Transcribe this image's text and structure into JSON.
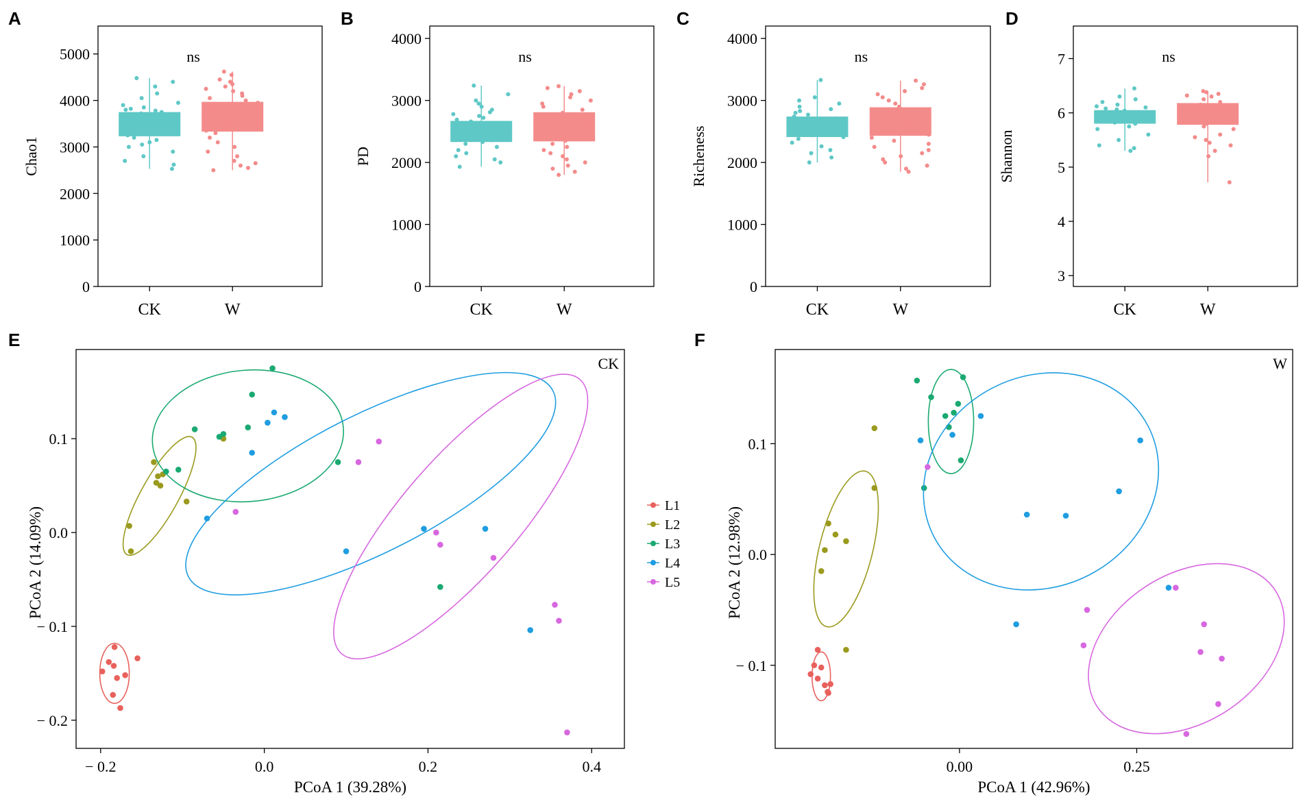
{
  "colors": {
    "CK": "#5ec8c6",
    "W": "#f48b8b",
    "L1": "#e8615c",
    "L2": "#9a9a1e",
    "L3": "#1aa971",
    "L4": "#1f9de0",
    "L5": "#d767e0"
  },
  "chart_data": [
    {
      "panel": "A",
      "type": "box",
      "ylabel": "Chao1",
      "ylim": [
        0,
        5600
      ],
      "yticks": [
        0,
        1000,
        2000,
        3000,
        4000,
        5000
      ],
      "categories": [
        "CK",
        "W"
      ],
      "annotation": "ns",
      "boxes": [
        {
          "name": "CK",
          "min": 2530,
          "q1": 3230,
          "median": 3400,
          "q3": 3750,
          "max": 4480,
          "points": [
            2530,
            2620,
            2700,
            2800,
            2900,
            3000,
            3050,
            3100,
            3150,
            3200,
            3250,
            3300,
            3320,
            3350,
            3380,
            3400,
            3420,
            3450,
            3480,
            3500,
            3530,
            3560,
            3600,
            3620,
            3650,
            3680,
            3700,
            3720,
            3750,
            3780,
            3800,
            3820,
            3850,
            3900,
            3950,
            4050,
            4150,
            4300,
            4400,
            4480
          ]
        },
        {
          "name": "W",
          "min": 2500,
          "q1": 3330,
          "median": 3600,
          "q3": 3970,
          "max": 4620,
          "points": [
            2500,
            2550,
            2600,
            2650,
            2700,
            2800,
            2900,
            3000,
            3100,
            3200,
            3300,
            3350,
            3400,
            3450,
            3500,
            3550,
            3600,
            3650,
            3700,
            3750,
            3800,
            3850,
            3900,
            3950,
            4000,
            4050,
            4100,
            4150,
            4200,
            4250,
            4300,
            4350,
            4400,
            4450,
            4550,
            4620
          ]
        }
      ]
    },
    {
      "panel": "B",
      "type": "box",
      "ylabel": "PD",
      "ylim": [
        0,
        4200
      ],
      "yticks": [
        0,
        1000,
        2000,
        3000,
        4000
      ],
      "categories": [
        "CK",
        "W"
      ],
      "annotation": "ns",
      "boxes": [
        {
          "name": "CK",
          "min": 1930,
          "q1": 2330,
          "median": 2450,
          "q3": 2670,
          "max": 3240,
          "points": [
            1930,
            2000,
            2050,
            2100,
            2150,
            2200,
            2250,
            2300,
            2330,
            2360,
            2390,
            2420,
            2450,
            2480,
            2510,
            2540,
            2570,
            2600,
            2630,
            2660,
            2690,
            2720,
            2750,
            2780,
            2810,
            2850,
            2900,
            2950,
            3000,
            3100,
            3240
          ]
        },
        {
          "name": "W",
          "min": 1800,
          "q1": 2340,
          "median": 2500,
          "q3": 2810,
          "max": 3230,
          "points": [
            1800,
            1850,
            1900,
            1950,
            2000,
            2050,
            2100,
            2150,
            2200,
            2250,
            2300,
            2350,
            2400,
            2450,
            2500,
            2550,
            2600,
            2650,
            2700,
            2750,
            2800,
            2850,
            2900,
            2950,
            3000,
            3050,
            3100,
            3150,
            3200,
            3230
          ]
        }
      ]
    },
    {
      "panel": "C",
      "type": "box",
      "ylabel": "Richeness",
      "ylim": [
        0,
        4200
      ],
      "yticks": [
        0,
        1000,
        2000,
        3000,
        4000
      ],
      "categories": [
        "CK",
        "W"
      ],
      "annotation": "ns",
      "boxes": [
        {
          "name": "CK",
          "min": 2000,
          "q1": 2410,
          "median": 2560,
          "q3": 2740,
          "max": 3330,
          "points": [
            2000,
            2080,
            2150,
            2200,
            2260,
            2320,
            2380,
            2410,
            2440,
            2470,
            2500,
            2530,
            2560,
            2590,
            2620,
            2650,
            2680,
            2710,
            2740,
            2770,
            2800,
            2830,
            2860,
            2900,
            2950,
            3000,
            3050,
            3330
          ]
        },
        {
          "name": "W",
          "min": 1850,
          "q1": 2430,
          "median": 2600,
          "q3": 2890,
          "max": 3320,
          "points": [
            1850,
            1900,
            1950,
            2000,
            2050,
            2100,
            2150,
            2200,
            2250,
            2300,
            2350,
            2400,
            2450,
            2500,
            2550,
            2600,
            2650,
            2700,
            2750,
            2800,
            2850,
            2900,
            2950,
            3000,
            3050,
            3100,
            3150,
            3200,
            3260,
            3320
          ]
        }
      ]
    },
    {
      "panel": "D",
      "type": "box",
      "ylabel": "Shannon",
      "ylim": [
        2.8,
        7.6
      ],
      "yticks": [
        3,
        4,
        5,
        6,
        7
      ],
      "categories": [
        "CK",
        "W"
      ],
      "annotation": "ns",
      "boxes": [
        {
          "name": "CK",
          "min": 5.3,
          "q1": 5.8,
          "median": 5.9,
          "q3": 6.05,
          "max": 6.45,
          "points": [
            5.3,
            5.35,
            5.4,
            5.5,
            5.6,
            5.7,
            5.75,
            5.8,
            5.82,
            5.85,
            5.87,
            5.9,
            5.92,
            5.94,
            5.96,
            5.98,
            6.0,
            6.02,
            6.04,
            6.06,
            6.08,
            6.1,
            6.12,
            6.15,
            6.2,
            6.25,
            6.3,
            6.45
          ]
        },
        {
          "name": "W",
          "min": 4.72,
          "q1": 5.78,
          "median": 6.0,
          "q3": 6.18,
          "max": 6.4,
          "points": [
            4.72,
            5.2,
            5.3,
            5.4,
            5.45,
            5.5,
            5.55,
            5.6,
            5.7,
            5.75,
            5.8,
            5.85,
            5.9,
            5.95,
            6.0,
            6.05,
            6.1,
            6.15,
            6.2,
            6.25,
            6.3,
            6.32,
            6.35,
            6.38,
            6.4
          ]
        }
      ]
    },
    {
      "panel": "E",
      "type": "scatter",
      "tag": "CK",
      "xlabel": "PCoA 1 (39.28%)",
      "ylabel": "PCoA 2 (14.09%)",
      "xlim": [
        -0.23,
        0.44
      ],
      "ylim": [
        -0.23,
        0.195
      ],
      "xticks": [
        -0.2,
        0.0,
        0.2,
        0.4
      ],
      "xtick_labels": [
        "− 0.2",
        "0.0",
        "0.2",
        "0.4"
      ],
      "yticks": [
        0.1,
        0.0,
        -0.1,
        -0.2
      ],
      "ytick_labels": [
        "0.1",
        "0.0",
        "− 0.1",
        "− 0.2"
      ],
      "series": [
        {
          "name": "L1",
          "points": [
            [
              -0.198,
              -0.148
            ],
            [
              -0.19,
              -0.138
            ],
            [
              -0.185,
              -0.173
            ],
            [
              -0.18,
              -0.155
            ],
            [
              -0.176,
              -0.187
            ],
            [
              -0.17,
              -0.152
            ],
            [
              -0.155,
              -0.134
            ],
            [
              -0.184,
              -0.142
            ],
            [
              -0.183,
              -0.122
            ]
          ],
          "ellipse": {
            "cx": -0.183,
            "cy": -0.15,
            "rx": 0.018,
            "ry": 0.032,
            "angle": 0
          }
        },
        {
          "name": "L2",
          "points": [
            [
              -0.165,
              0.007
            ],
            [
              -0.163,
              -0.02
            ],
            [
              -0.135,
              0.075
            ],
            [
              -0.13,
              0.06
            ],
            [
              -0.127,
              0.05
            ],
            [
              -0.132,
              0.053
            ],
            [
              -0.124,
              0.062
            ],
            [
              -0.095,
              0.033
            ],
            [
              -0.05,
              0.1
            ]
          ],
          "ellipse": {
            "cx": -0.128,
            "cy": 0.039,
            "rx": 0.082,
            "ry": 0.02,
            "angle": -61
          }
        },
        {
          "name": "L3",
          "points": [
            [
              0.01,
              0.175
            ],
            [
              -0.015,
              0.147
            ],
            [
              -0.02,
              0.112
            ],
            [
              -0.085,
              0.11
            ],
            [
              -0.05,
              0.105
            ],
            [
              -0.055,
              0.102
            ],
            [
              -0.12,
              0.065
            ],
            [
              -0.105,
              0.067
            ],
            [
              0.09,
              0.075
            ],
            [
              0.215,
              -0.058
            ]
          ],
          "ellipse": {
            "cx": -0.02,
            "cy": 0.103,
            "rx": 0.117,
            "ry": 0.07,
            "angle": -5
          }
        },
        {
          "name": "L4",
          "points": [
            [
              0.012,
              0.128
            ],
            [
              0.025,
              0.123
            ],
            [
              0.004,
              0.117
            ],
            [
              -0.015,
              0.085
            ],
            [
              -0.07,
              0.015
            ],
            [
              0.1,
              -0.02
            ],
            [
              0.195,
              0.004
            ],
            [
              0.27,
              0.004
            ],
            [
              0.325,
              -0.104
            ]
          ],
          "ellipse": {
            "cx": 0.13,
            "cy": 0.052,
            "rx": 0.25,
            "ry": 0.073,
            "angle": -27
          }
        },
        {
          "name": "L5",
          "points": [
            [
              0.14,
              0.097
            ],
            [
              0.115,
              0.075
            ],
            [
              -0.035,
              0.022
            ],
            [
              0.21,
              0.0
            ],
            [
              0.215,
              -0.013
            ],
            [
              0.28,
              -0.027
            ],
            [
              0.355,
              -0.077
            ],
            [
              0.36,
              -0.094
            ],
            [
              0.37,
              -0.213
            ]
          ],
          "ellipse": {
            "cx": 0.24,
            "cy": 0.017,
            "rx": 0.222,
            "ry": 0.062,
            "angle": -49
          }
        }
      ],
      "legend": [
        "L1",
        "L2",
        "L3",
        "L4",
        "L5"
      ]
    },
    {
      "panel": "F",
      "type": "scatter",
      "tag": "W",
      "xlabel": "PCoA 1 (42.96%)",
      "ylabel": "PCoA 2 (12.98%)",
      "xlim": [
        -0.26,
        0.47
      ],
      "ylim": [
        -0.175,
        0.185
      ],
      "xticks": [
        0.0,
        0.25
      ],
      "xtick_labels": [
        "0.00",
        "0.25"
      ],
      "yticks": [
        0.1,
        0.0,
        -0.1
      ],
      "ytick_labels": [
        "0.1",
        "0.0",
        "− 0.1"
      ],
      "series": [
        {
          "name": "L1",
          "points": [
            [
              -0.21,
              -0.108
            ],
            [
              -0.205,
              -0.1
            ],
            [
              -0.2,
              -0.112
            ],
            [
              -0.195,
              -0.102
            ],
            [
              -0.19,
              -0.118
            ],
            [
              -0.185,
              -0.125
            ],
            [
              -0.182,
              -0.117
            ],
            [
              -0.186,
              -0.124
            ],
            [
              -0.2,
              -0.086
            ]
          ],
          "ellipse": {
            "cx": -0.195,
            "cy": -0.11,
            "rx": 0.013,
            "ry": 0.022,
            "angle": 0
          }
        },
        {
          "name": "L2",
          "points": [
            [
              -0.12,
              0.114
            ],
            [
              -0.12,
              0.06
            ],
            [
              -0.185,
              0.028
            ],
            [
              -0.175,
              0.018
            ],
            [
              -0.16,
              0.012
            ],
            [
              -0.19,
              0.004
            ],
            [
              -0.195,
              -0.015
            ],
            [
              -0.16,
              -0.086
            ]
          ],
          "ellipse": {
            "cx": -0.16,
            "cy": 0.005,
            "rx": 0.113,
            "ry": 0.024,
            "angle": -76
          }
        },
        {
          "name": "L3",
          "points": [
            [
              -0.06,
              0.157
            ],
            [
              -0.04,
              0.142
            ],
            [
              0.005,
              0.16
            ],
            [
              -0.008,
              0.128
            ],
            [
              -0.02,
              0.125
            ],
            [
              -0.015,
              0.115
            ],
            [
              -0.002,
              0.136
            ],
            [
              0.002,
              0.085
            ],
            [
              -0.05,
              0.06
            ]
          ],
          "ellipse": {
            "cx": -0.012,
            "cy": 0.12,
            "rx": 0.032,
            "ry": 0.047,
            "angle": 0
          }
        },
        {
          "name": "L4",
          "points": [
            [
              -0.055,
              0.103
            ],
            [
              -0.01,
              0.108
            ],
            [
              0.03,
              0.125
            ],
            [
              0.255,
              0.103
            ],
            [
              0.225,
              0.057
            ],
            [
              0.095,
              0.036
            ],
            [
              0.15,
              0.035
            ],
            [
              0.08,
              -0.063
            ],
            [
              0.295,
              -0.03
            ]
          ],
          "ellipse": {
            "cx": 0.115,
            "cy": 0.066,
            "rx": 0.17,
            "ry": 0.095,
            "angle": -27
          }
        },
        {
          "name": "L5",
          "points": [
            [
              -0.045,
              0.079
            ],
            [
              0.305,
              -0.03
            ],
            [
              0.18,
              -0.05
            ],
            [
              0.345,
              -0.063
            ],
            [
              0.175,
              -0.082
            ],
            [
              0.34,
              -0.088
            ],
            [
              0.37,
              -0.094
            ],
            [
              0.365,
              -0.135
            ],
            [
              0.32,
              -0.162
            ]
          ],
          "ellipse": {
            "cx": 0.32,
            "cy": -0.085,
            "rx": 0.15,
            "ry": 0.067,
            "angle": -33
          }
        }
      ]
    }
  ]
}
